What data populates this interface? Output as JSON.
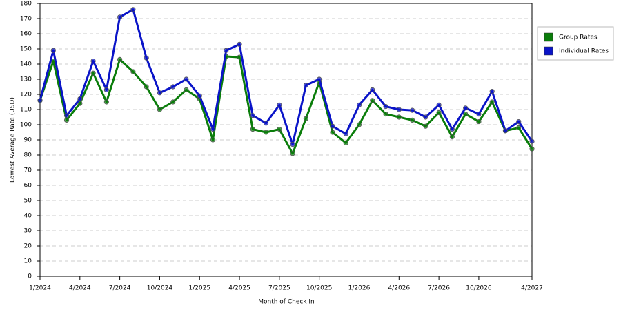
{
  "chart_data": {
    "type": "line",
    "x_label": "Month of Check In",
    "y_label": "Lowest Average Rate (USD)",
    "categories": [
      "1/2024",
      null,
      null,
      "4/2024",
      null,
      null,
      "7/2024",
      null,
      null,
      "10/2024",
      null,
      null,
      "1/2025",
      null,
      null,
      "4/2025",
      null,
      null,
      "7/2025",
      null,
      null,
      "10/2025",
      null,
      null,
      "1/2026",
      null,
      null,
      "4/2026",
      null,
      null,
      "7/2026",
      null,
      null,
      "10/2026",
      null,
      null,
      null,
      "4/2027"
    ],
    "series": [
      {
        "name": "Group Rates",
        "color": "#0a7d0a",
        "values": [
          116,
          142,
          103,
          114,
          134,
          115,
          143,
          135,
          125,
          110,
          115,
          123,
          117,
          90,
          145,
          144.5,
          97,
          95,
          97,
          81,
          104,
          128,
          95,
          88,
          100,
          116,
          107,
          105,
          103,
          99,
          108,
          92,
          107,
          102,
          115,
          96,
          98,
          84
        ]
      },
      {
        "name": "Individual Rates",
        "color": "#0a14c8",
        "values": [
          116,
          149,
          106,
          117,
          142,
          123,
          171,
          176,
          144,
          121,
          125,
          130,
          119,
          97,
          149,
          153,
          106,
          101,
          113,
          87,
          126,
          130,
          99,
          94,
          113,
          123,
          112,
          110,
          109.5,
          105,
          113,
          97,
          111,
          107,
          122,
          96,
          102,
          89
        ]
      }
    ],
    "ylim": [
      0,
      180
    ],
    "yticks": [
      0,
      10,
      20,
      30,
      40,
      50,
      60,
      70,
      80,
      90,
      100,
      110,
      120,
      130,
      140,
      150,
      160,
      170,
      180
    ],
    "grid": true,
    "legend": "right"
  }
}
